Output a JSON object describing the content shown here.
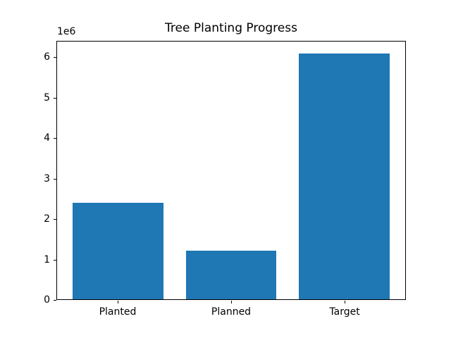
{
  "chart_data": {
    "type": "bar",
    "title": "Tree Planting Progress",
    "categories": [
      "Planted",
      "Planned",
      "Target"
    ],
    "values": [
      2400000,
      1200000,
      6100000
    ],
    "xlabel": "",
    "ylabel": "",
    "y_offset_label": "1e6",
    "y_ticks": [
      0,
      1,
      2,
      3,
      4,
      5,
      6
    ],
    "y_tick_scale": 1000000,
    "ylim": [
      0,
      6405000
    ],
    "xlim": [
      -0.54,
      2.54
    ],
    "bar_width": 0.8,
    "bar_color": "#1f77b4",
    "grid": false,
    "legend": null,
    "background_color": "#ffffff",
    "axis_color": "#000000"
  }
}
